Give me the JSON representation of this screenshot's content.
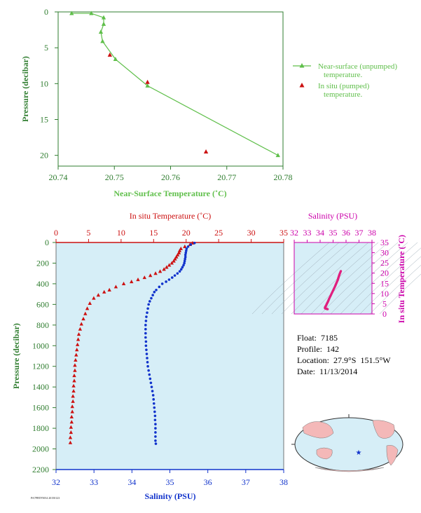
{
  "colors": {
    "green": "#5fbf4a",
    "axis_green": "#2f7d2f",
    "red": "#cc1111",
    "blue": "#1133cc",
    "magenta": "#cc00aa",
    "pink": "#e0207f",
    "plot_bg": "#d6eef7"
  },
  "float_info": {
    "float_line": "Float:  7185",
    "profile_line": "Profile:  142",
    "location_line": "Location:  27.9°S  151.5°W",
    "date_line": "Date:  11/13/2014"
  },
  "tiny_id": "PA7PBTF5054 20150123",
  "chart_data": [
    {
      "type": "line",
      "xlabel": "Near-Surface Temperature (˚C)",
      "ylabel": "Pressure (decibar)",
      "xlim": [
        20.74,
        20.78
      ],
      "ylim": [
        0,
        21.5
      ],
      "y_inverted": true,
      "xticks": [
        "20.74",
        "20.75",
        "20.76",
        "20.77",
        "20.78"
      ],
      "yticks": [
        "0",
        "5",
        "10",
        "15",
        "20"
      ],
      "legend": {
        "placement": "right",
        "entries": [
          "Near-surface (unpumped) temperature.",
          "In situ (pumped) temperature."
        ]
      },
      "series": [
        {
          "name": "Near-surface (unpumped) temperature.",
          "marker": "triangle-line",
          "points": [
            [
              20.7424,
              0.2
            ],
            [
              20.7459,
              0.2
            ],
            [
              20.7481,
              0.8
            ],
            [
              20.7481,
              1.7
            ],
            [
              20.7476,
              2.8
            ],
            [
              20.7479,
              4.1
            ],
            [
              20.7502,
              6.6
            ],
            [
              20.7559,
              10.3
            ],
            [
              20.7791,
              20.0
            ]
          ]
        },
        {
          "name": "In situ (pumped) temperature.",
          "marker": "triangle",
          "points": [
            [
              20.7492,
              6.0
            ],
            [
              20.7559,
              9.8
            ],
            [
              20.7663,
              19.5
            ]
          ]
        }
      ]
    },
    {
      "type": "scatter",
      "title_top": "In situ Temperature (˚C)",
      "xlabel": "Salinity (PSU)",
      "ylabel": "Pressure (decibar)",
      "top_axis": {
        "range": [
          0,
          35
        ],
        "ticks": [
          "0",
          "5",
          "10",
          "15",
          "20",
          "25",
          "30",
          "35"
        ]
      },
      "bottom_axis": {
        "range": [
          32,
          38
        ],
        "ticks": [
          "32",
          "33",
          "34",
          "35",
          "36",
          "37",
          "38"
        ]
      },
      "ylim": [
        0,
        2200
      ],
      "y_inverted": true,
      "yticks": [
        "0",
        "200",
        "400",
        "600",
        "800",
        "1000",
        "1200",
        "1400",
        "1600",
        "1800",
        "2000",
        "2200"
      ],
      "grid": false,
      "series": [
        {
          "name": "In situ Temperature",
          "marker": "triangle",
          "points": [
            [
              21.0,
              5
            ],
            [
              20.6,
              20
            ],
            [
              19.8,
              40
            ],
            [
              19.2,
              60
            ],
            [
              19.0,
              80
            ],
            [
              18.9,
              100
            ],
            [
              18.7,
              120
            ],
            [
              18.5,
              140
            ],
            [
              18.3,
              160
            ],
            [
              18.1,
              180
            ],
            [
              17.8,
              200
            ],
            [
              17.4,
              220
            ],
            [
              17.0,
              240
            ],
            [
              16.6,
              260
            ],
            [
              16.0,
              280
            ],
            [
              15.3,
              300
            ],
            [
              14.5,
              320
            ],
            [
              13.6,
              340
            ],
            [
              12.6,
              360
            ],
            [
              11.6,
              380
            ],
            [
              10.4,
              400
            ],
            [
              9.2,
              430
            ],
            [
              8.2,
              460
            ],
            [
              7.4,
              480
            ],
            [
              6.5,
              510
            ],
            [
              5.8,
              540
            ],
            [
              5.2,
              590
            ],
            [
              4.8,
              640
            ],
            [
              4.5,
              690
            ],
            [
              4.2,
              740
            ],
            [
              3.9,
              790
            ],
            [
              3.7,
              840
            ],
            [
              3.5,
              890
            ],
            [
              3.4,
              940
            ],
            [
              3.3,
              990
            ],
            [
              3.2,
              1040
            ],
            [
              3.1,
              1090
            ],
            [
              3.0,
              1140
            ],
            [
              2.9,
              1190
            ],
            [
              2.9,
              1240
            ],
            [
              2.8,
              1290
            ],
            [
              2.8,
              1340
            ],
            [
              2.7,
              1390
            ],
            [
              2.7,
              1440
            ],
            [
              2.6,
              1490
            ],
            [
              2.6,
              1540
            ],
            [
              2.5,
              1590
            ],
            [
              2.5,
              1640
            ],
            [
              2.4,
              1690
            ],
            [
              2.4,
              1740
            ],
            [
              2.3,
              1790
            ],
            [
              2.3,
              1840
            ],
            [
              2.2,
              1890
            ],
            [
              2.2,
              1940
            ]
          ]
        },
        {
          "name": "Salinity",
          "marker": "dot",
          "points": [
            [
              35.65,
              5
            ],
            [
              35.55,
              20
            ],
            [
              35.48,
              40
            ],
            [
              35.44,
              60
            ],
            [
              35.43,
              80
            ],
            [
              35.42,
              100
            ],
            [
              35.41,
              120
            ],
            [
              35.41,
              140
            ],
            [
              35.4,
              160
            ],
            [
              35.39,
              180
            ],
            [
              35.38,
              200
            ],
            [
              35.36,
              220
            ],
            [
              35.33,
              240
            ],
            [
              35.3,
              260
            ],
            [
              35.26,
              280
            ],
            [
              35.2,
              300
            ],
            [
              35.13,
              320
            ],
            [
              35.06,
              340
            ],
            [
              34.98,
              360
            ],
            [
              34.9,
              380
            ],
            [
              34.8,
              400
            ],
            [
              34.72,
              430
            ],
            [
              34.64,
              460
            ],
            [
              34.59,
              480
            ],
            [
              34.55,
              510
            ],
            [
              34.51,
              540
            ],
            [
              34.47,
              570
            ],
            [
              34.44,
              600
            ],
            [
              34.42,
              640
            ],
            [
              34.4,
              680
            ],
            [
              34.38,
              720
            ],
            [
              34.37,
              760
            ],
            [
              34.36,
              800
            ],
            [
              34.36,
              840
            ],
            [
              34.36,
              880
            ],
            [
              34.36,
              920
            ],
            [
              34.37,
              960
            ],
            [
              34.37,
              1000
            ],
            [
              34.38,
              1040
            ],
            [
              34.39,
              1080
            ],
            [
              34.4,
              1120
            ],
            [
              34.41,
              1160
            ],
            [
              34.42,
              1200
            ],
            [
              34.44,
              1240
            ],
            [
              34.46,
              1280
            ],
            [
              34.48,
              1320
            ],
            [
              34.5,
              1360
            ],
            [
              34.52,
              1400
            ],
            [
              34.54,
              1440
            ],
            [
              34.56,
              1480
            ],
            [
              34.57,
              1520
            ],
            [
              34.58,
              1560
            ],
            [
              34.59,
              1600
            ],
            [
              34.6,
              1640
            ],
            [
              34.61,
              1680
            ],
            [
              34.61,
              1720
            ],
            [
              34.62,
              1760
            ],
            [
              34.62,
              1800
            ],
            [
              34.62,
              1840
            ],
            [
              34.62,
              1880
            ],
            [
              34.62,
              1920
            ],
            [
              34.63,
              1950
            ]
          ]
        }
      ]
    },
    {
      "type": "scatter",
      "title_top": "Salinity (PSU)",
      "ylabel_right": "In situ Temperature (˚C)",
      "xlim": [
        32,
        38
      ],
      "ylim": [
        0,
        35
      ],
      "xticks": [
        "32",
        "33",
        "34",
        "35",
        "36",
        "37",
        "38"
      ],
      "yticks": [
        "0",
        "5",
        "10",
        "15",
        "20",
        "25",
        "30",
        "35"
      ],
      "series": [
        {
          "name": "T-S",
          "marker": "dot",
          "points": [
            [
              35.6,
              21.0
            ],
            [
              35.5,
              19.5
            ],
            [
              35.45,
              18.5
            ],
            [
              35.4,
              17.5
            ],
            [
              35.35,
              16.5
            ],
            [
              35.25,
              15.0
            ],
            [
              35.15,
              13.5
            ],
            [
              35.0,
              11.5
            ],
            [
              34.85,
              9.5
            ],
            [
              34.7,
              7.5
            ],
            [
              34.6,
              6.0
            ],
            [
              34.52,
              5.0
            ],
            [
              34.45,
              4.0
            ],
            [
              34.4,
              3.5
            ],
            [
              34.37,
              3.0
            ],
            [
              34.4,
              2.7
            ],
            [
              34.5,
              2.5
            ],
            [
              34.6,
              2.3
            ]
          ]
        }
      ]
    }
  ]
}
